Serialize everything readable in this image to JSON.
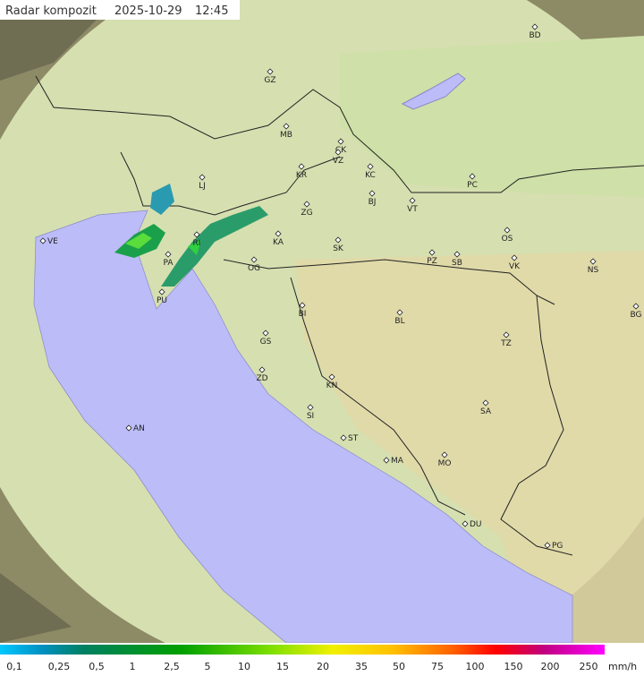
{
  "header": {
    "title": "Radar kompozit",
    "date": "2025-10-29",
    "time": "12:45"
  },
  "places": [
    "BD",
    "GZ",
    "MB",
    "CK",
    "VZ",
    "KR",
    "KC",
    "LJ",
    "PC",
    "ZG",
    "BJ",
    "VT",
    "VE",
    "KA",
    "SK",
    "RI",
    "OS",
    "PA",
    "OG",
    "PZ",
    "SB",
    "VK",
    "NS",
    "PU",
    "BI",
    "BG",
    "BL",
    "GS",
    "TZ",
    "ZD",
    "KN",
    "SA",
    "SI",
    "AN",
    "ST",
    "MO",
    "MA",
    "DU",
    "PG"
  ],
  "legend": {
    "labels": [
      "0,1",
      "0,25",
      "0,5",
      "1",
      "2,5",
      "5",
      "10",
      "15",
      "20",
      "35",
      "50",
      "75",
      "100",
      "150",
      "200",
      "250"
    ],
    "unit": "mm/h"
  }
}
